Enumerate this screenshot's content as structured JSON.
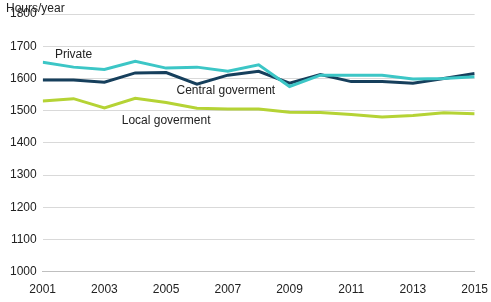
{
  "chart_data": {
    "type": "line",
    "y_label": "Hours/year",
    "x": [
      2001,
      2002,
      2003,
      2004,
      2005,
      2006,
      2007,
      2008,
      2009,
      2010,
      2011,
      2012,
      2013,
      2014,
      2015
    ],
    "xlim": [
      2001,
      2015
    ],
    "xticks": [
      2001,
      2003,
      2005,
      2007,
      2009,
      2011,
      2013,
      2015
    ],
    "ylim": [
      1000,
      1800
    ],
    "yticks": [
      1000,
      1100,
      1200,
      1300,
      1400,
      1500,
      1600,
      1700,
      1800
    ],
    "grid": true,
    "series": [
      {
        "name": "Private",
        "color": "#3cc6c6",
        "values": [
          1650,
          1635,
          1628,
          1653,
          1632,
          1635,
          1622,
          1642,
          1575,
          1610,
          1610,
          1610,
          1598,
          1600,
          1605
        ]
      },
      {
        "name": "Central goverment",
        "color": "#163f5c",
        "values": [
          1595,
          1595,
          1588,
          1617,
          1618,
          1582,
          1610,
          1622,
          1585,
          1612,
          1590,
          1590,
          1585,
          1600,
          1615
        ]
      },
      {
        "name": "Local goverment",
        "color": "#b5d335",
        "values": [
          1530,
          1537,
          1508,
          1538,
          1525,
          1507,
          1505,
          1505,
          1495,
          1494,
          1488,
          1480,
          1485,
          1493,
          1490
        ]
      }
    ]
  }
}
